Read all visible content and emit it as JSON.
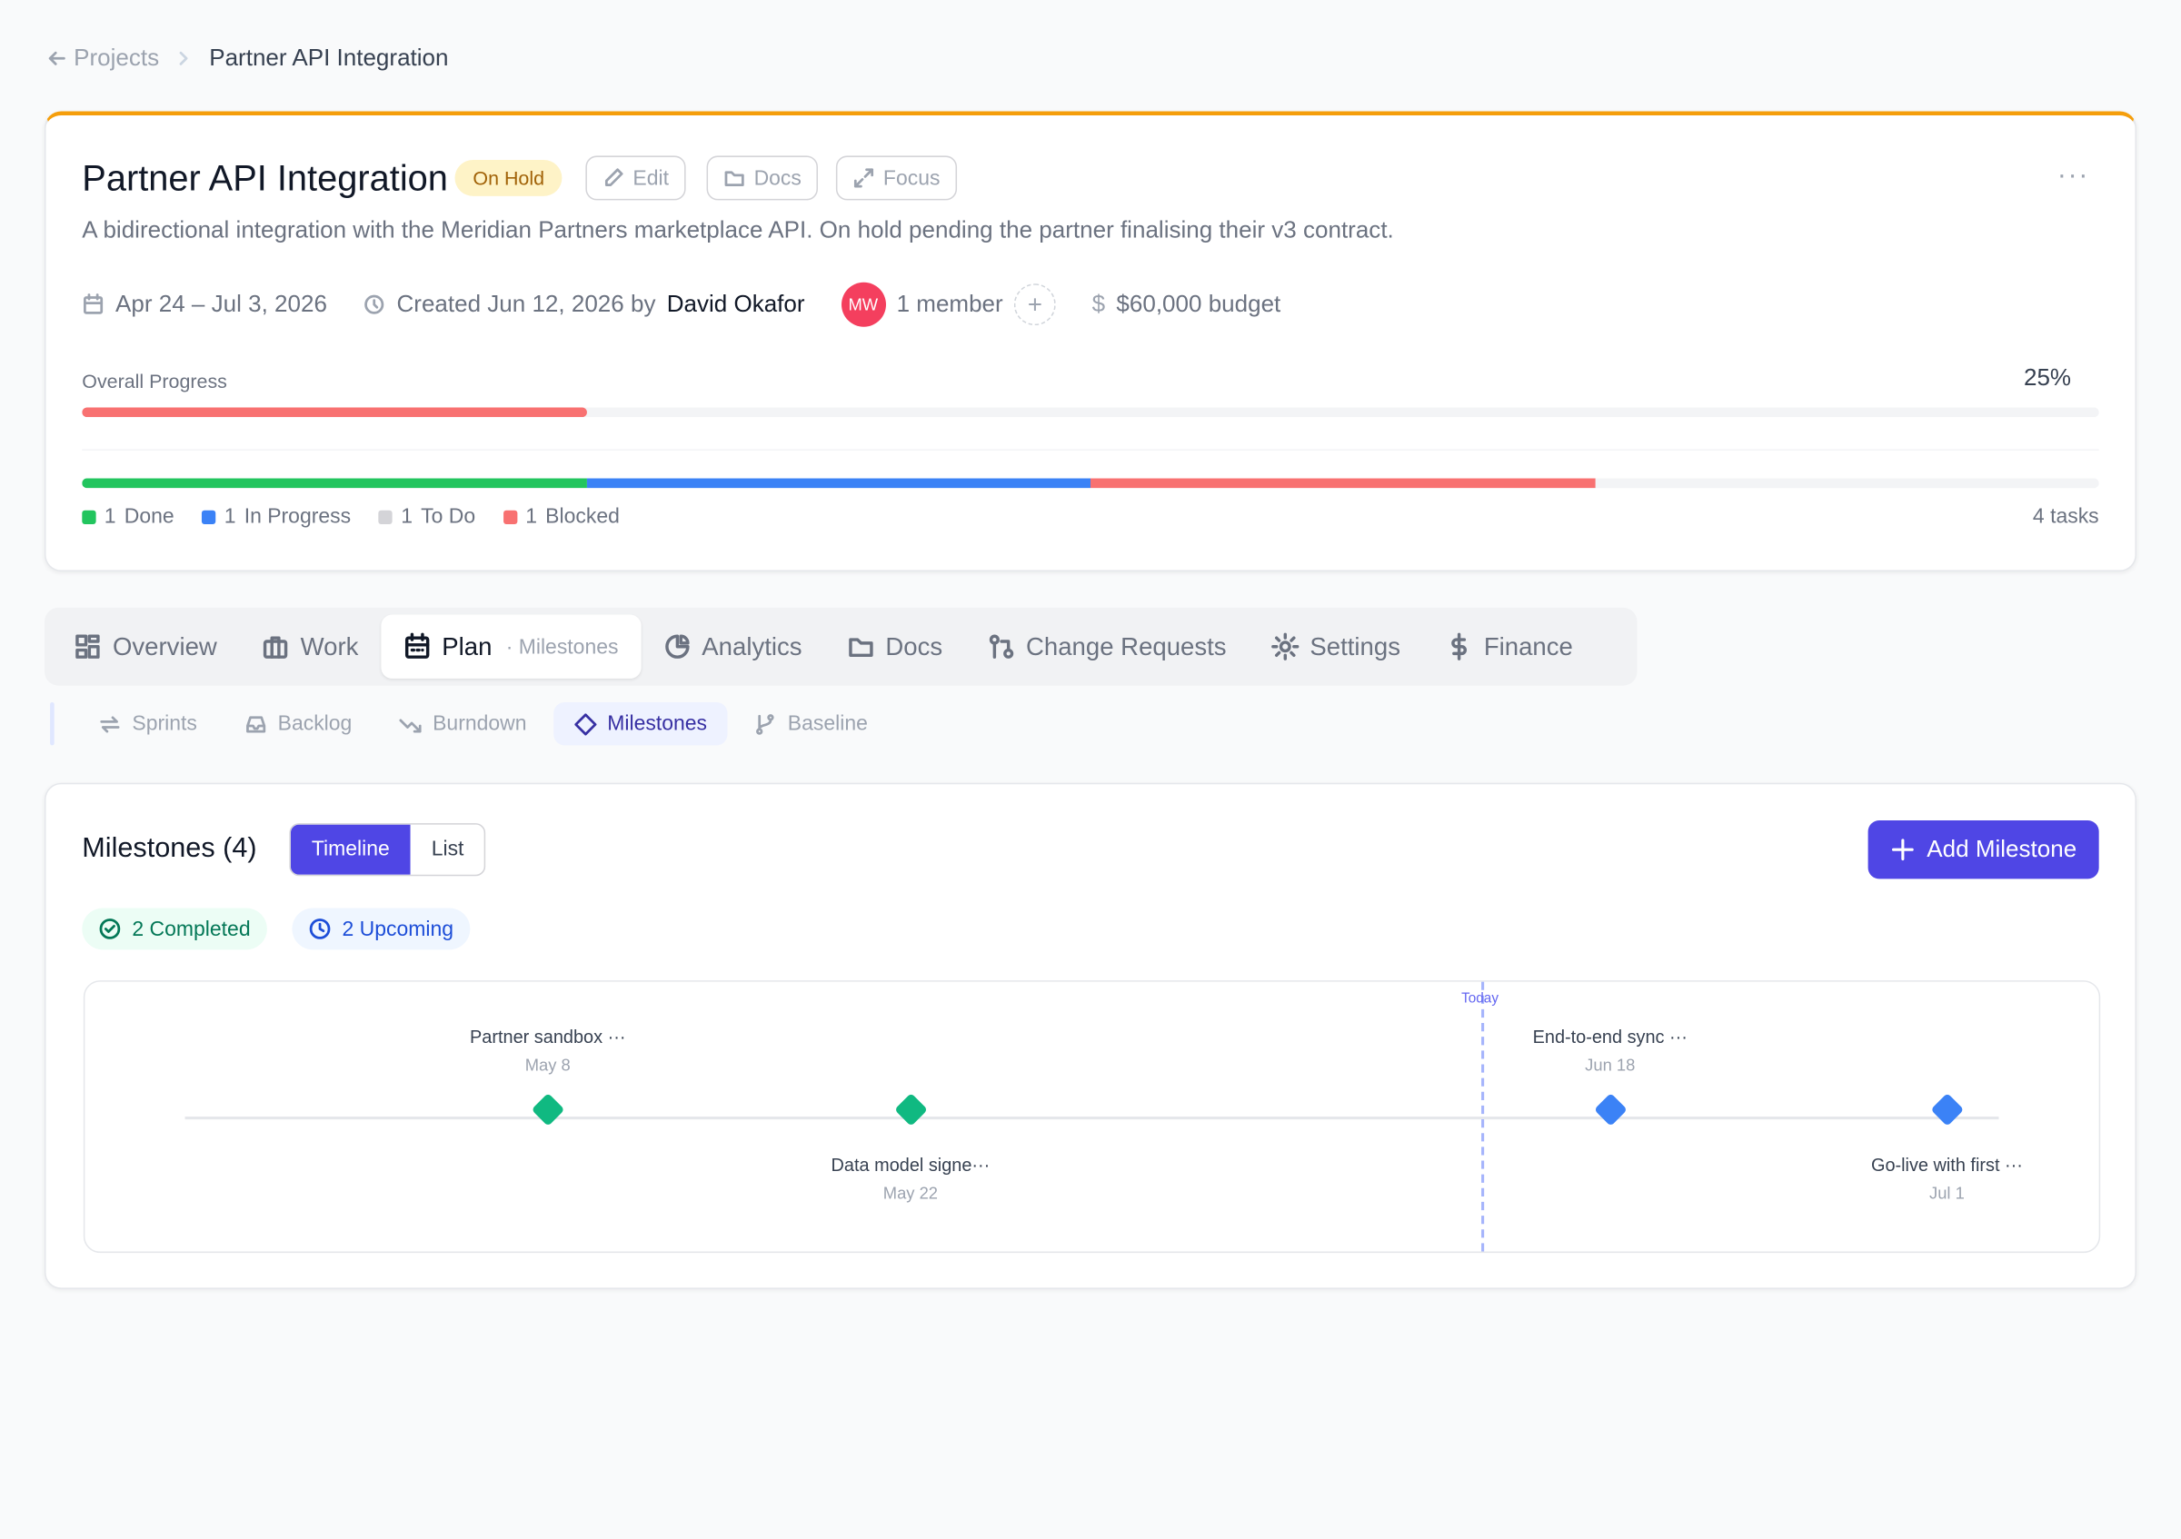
{
  "breadcrumb": {
    "back": "Projects",
    "current": "Partner API Integration"
  },
  "header": {
    "title": "Partner API Integration",
    "status": "On Hold",
    "actions": [
      "Edit",
      "Docs",
      "Focus"
    ],
    "description": "A bidirectional integration with the Meridian Partners marketplace API. On hold pending the partner finalising their v3 contract.",
    "dates": "Apr 24 – Jul 3, 2026",
    "created": "Created Jun 12, 2026 by",
    "creator": "David Okafor",
    "avatar": "MW",
    "members": "1 member",
    "budget": "$60,000 budget"
  },
  "progress": {
    "label": "Overall Progress",
    "value": 25,
    "value_label": "25%"
  },
  "tasks": {
    "segments": [
      {
        "count": 1,
        "label": "Done",
        "color": "#22c55e"
      },
      {
        "count": 1,
        "label": "In Progress",
        "color": "#3b82f6"
      },
      {
        "count": 1,
        "label": "To Do",
        "color": "#d4d4d8"
      },
      {
        "count": 1,
        "label": "Blocked",
        "color": "#f87171"
      }
    ],
    "total": {
      "count": 4,
      "label": "tasks"
    }
  },
  "tabs": {
    "items": [
      "Overview",
      "Work",
      "Plan",
      "Analytics",
      "Docs",
      "Change Requests",
      "Settings",
      "Finance"
    ],
    "active_sub": "· Milestones"
  },
  "subtabs": [
    "Sprints",
    "Backlog",
    "Burndown",
    "Milestones",
    "Baseline"
  ],
  "milestones": {
    "title": "Milestones (4)",
    "views": [
      "Timeline",
      "List"
    ],
    "add": "Add Milestone",
    "completed": "2 Completed",
    "upcoming": "2 Upcoming",
    "today": "Today",
    "items": [
      {
        "name": "Partner sandbox ···",
        "date": "May 8",
        "color": "#10b981"
      },
      {
        "name": "Data model signe···",
        "date": "May 22",
        "color": "#10b981"
      },
      {
        "name": "End-to-end sync ···",
        "date": "Jun 18",
        "color": "#3b82f6"
      },
      {
        "name": "Go-live with first ···",
        "date": "Jul 1",
        "color": "#3b82f6"
      }
    ]
  }
}
